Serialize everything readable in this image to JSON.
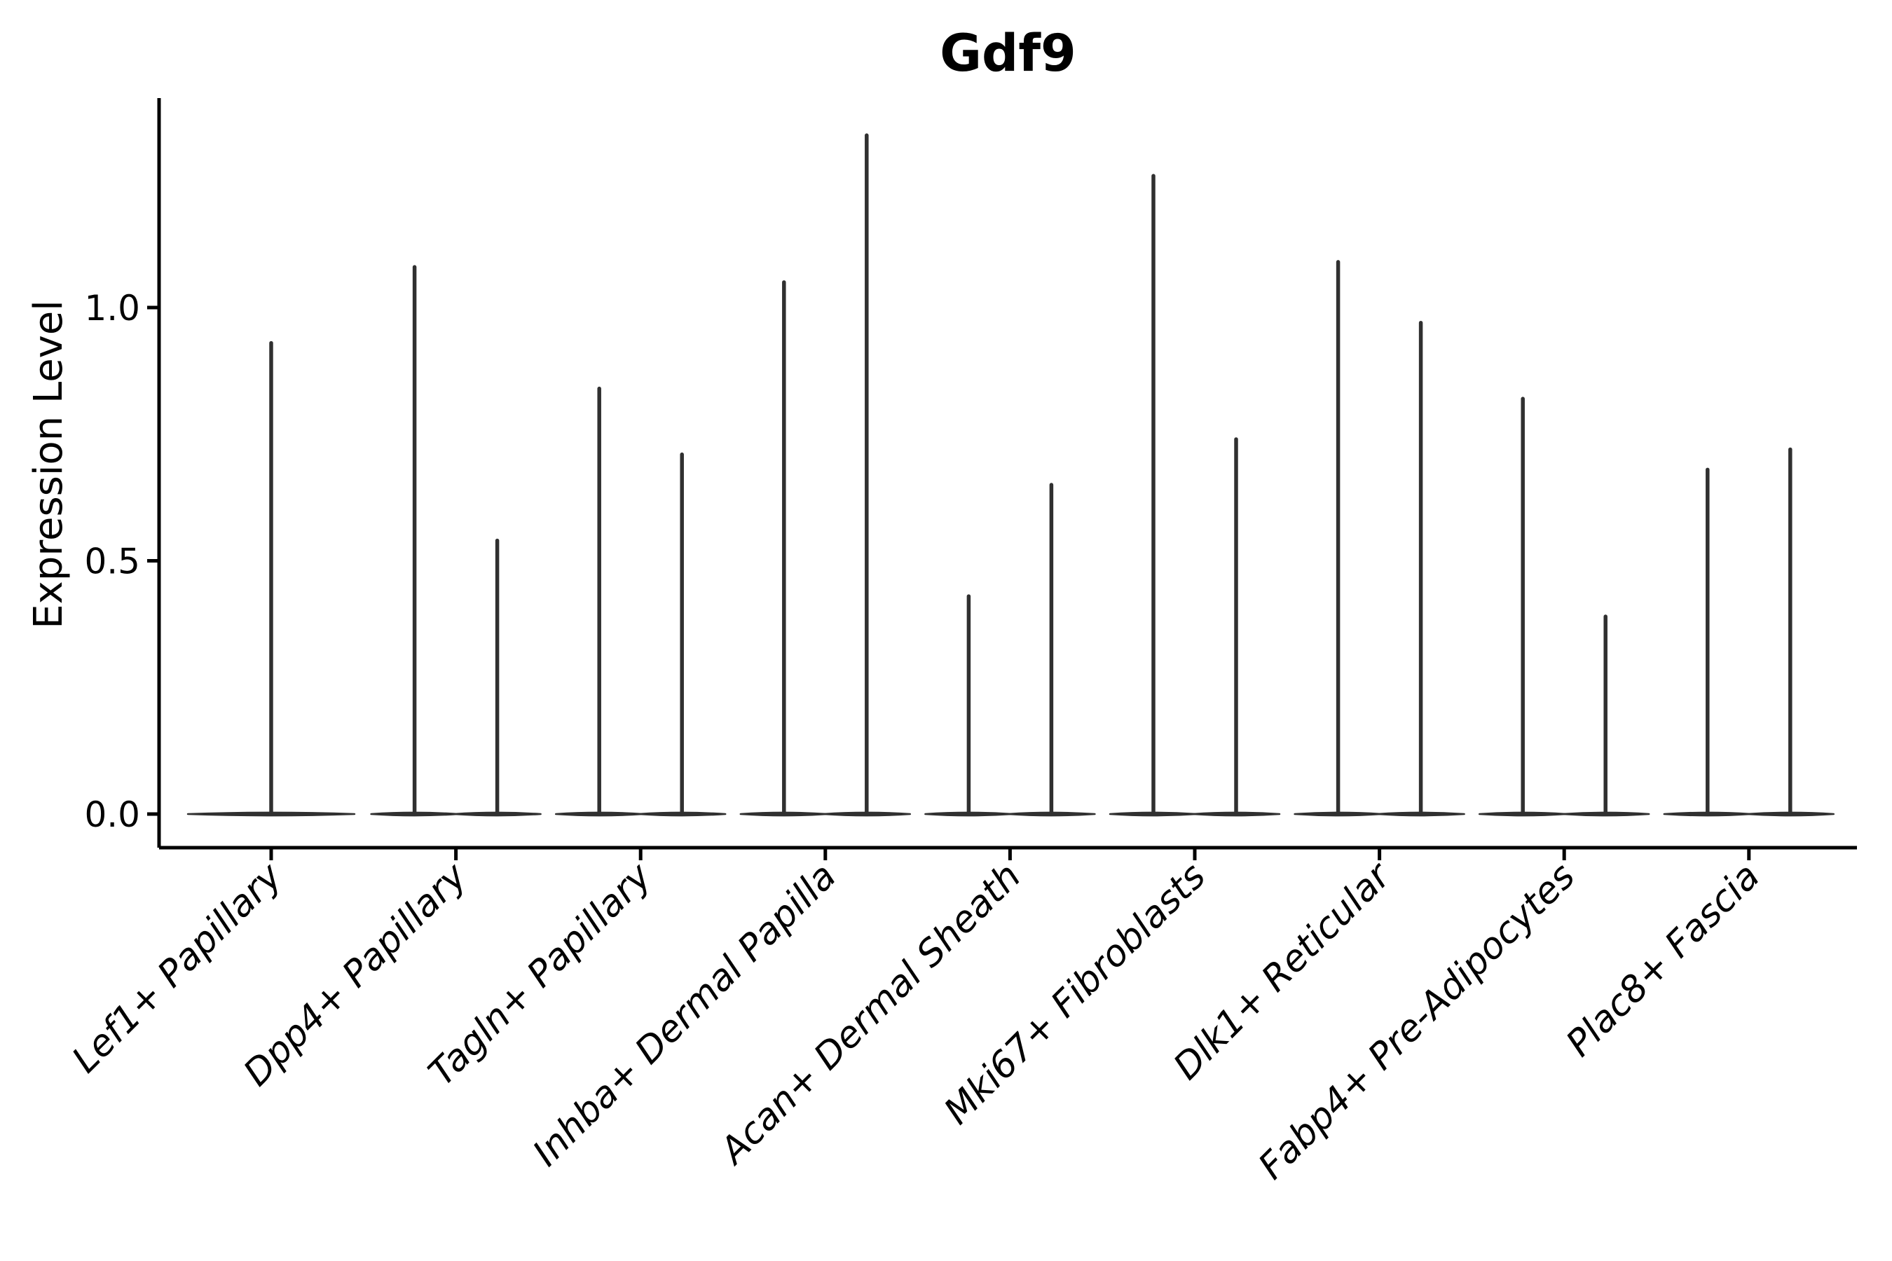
{
  "chart_data": {
    "type": "violin",
    "title": "Gdf9",
    "xlabel": "",
    "ylabel": "Expression Level",
    "yticks": [
      0.0,
      0.5,
      1.0
    ],
    "ytick_labels": [
      "0.0",
      "0.5",
      "1.0"
    ],
    "ylim": [
      -0.07,
      1.41
    ],
    "grid": false,
    "legend": null,
    "categories": [
      "Lef1+ Papillary",
      "Dpp4+ Papillary",
      "Tagln+ Papillary",
      "Inhba+ Dermal Papilla",
      "Acan+ Dermal Sheath",
      "Mki67+ Fibroblasts",
      "Dlk1+ Reticular",
      "Fabp4+ Pre-Adipocytes",
      "Plac8+ Fascia"
    ],
    "series": [
      {
        "category": "Lef1+ Papillary",
        "spike_maxima": [
          0.93
        ]
      },
      {
        "category": "Dpp4+ Papillary",
        "spike_maxima": [
          1.08,
          0.54
        ]
      },
      {
        "category": "Tagln+ Papillary",
        "spike_maxima": [
          0.84,
          0.71
        ]
      },
      {
        "category": "Inhba+ Dermal Papilla",
        "spike_maxima": [
          1.05,
          1.34
        ]
      },
      {
        "category": "Acan+ Dermal Sheath",
        "spike_maxima": [
          0.43,
          0.65
        ]
      },
      {
        "category": "Mki67+ Fibroblasts",
        "spike_maxima": [
          1.26,
          0.74
        ]
      },
      {
        "category": "Dlk1+ Reticular",
        "spike_maxima": [
          1.09,
          0.97
        ]
      },
      {
        "category": "Fabp4+ Pre-Adipocytes",
        "spike_maxima": [
          0.82,
          0.39
        ]
      },
      {
        "category": "Plac8+ Fascia",
        "spike_maxima": [
          0.68,
          0.72
        ]
      }
    ],
    "baseline_value": 0.0,
    "colors": {
      "violin_ink": "#303030",
      "axis": "#000000",
      "text": "#000000",
      "background": "#ffffff"
    }
  }
}
